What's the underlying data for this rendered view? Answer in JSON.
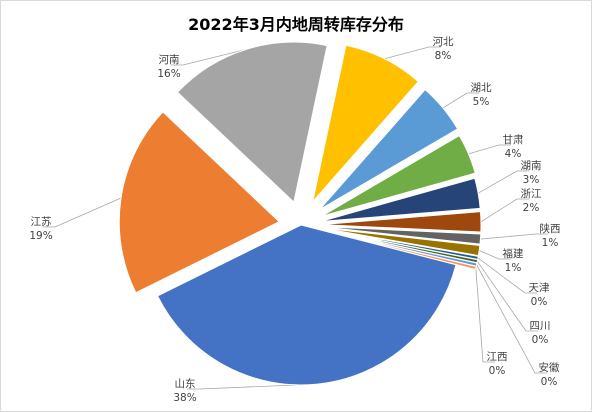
{
  "chart_data": {
    "type": "pie",
    "title": "2022年3月内地周转库存分布",
    "slices": [
      {
        "name": "河北",
        "value": 8,
        "label": "8%",
        "color": "#FFC000"
      },
      {
        "name": "湖北",
        "value": 5,
        "label": "5%",
        "color": "#5B9BD5"
      },
      {
        "name": "甘肃",
        "value": 4,
        "label": "4%",
        "color": "#70AD47"
      },
      {
        "name": "湖南",
        "value": 3,
        "label": "3%",
        "color": "#264478"
      },
      {
        "name": "浙江",
        "value": 2,
        "label": "2%",
        "color": "#9E480E"
      },
      {
        "name": "陕西",
        "value": 1,
        "label": "1%",
        "color": "#636363"
      },
      {
        "name": "福建",
        "value": 1,
        "label": "1%",
        "color": "#997300"
      },
      {
        "name": "天津",
        "value": 0.3,
        "label": "0%",
        "color": "#255E91"
      },
      {
        "name": "四川",
        "value": 0.3,
        "label": "0%",
        "color": "#43682B"
      },
      {
        "name": "安徽",
        "value": 0.3,
        "label": "0%",
        "color": "#698ED0"
      },
      {
        "name": "江西",
        "value": 0.3,
        "label": "0%",
        "color": "#F1975A"
      },
      {
        "name": "山东",
        "value": 38,
        "label": "38%",
        "color": "#4472C4"
      },
      {
        "name": "江苏",
        "value": 19,
        "label": "19%",
        "color": "#ED7D31"
      },
      {
        "name": "河南",
        "value": 16,
        "label": "16%",
        "color": "#A5A5A5"
      }
    ]
  }
}
